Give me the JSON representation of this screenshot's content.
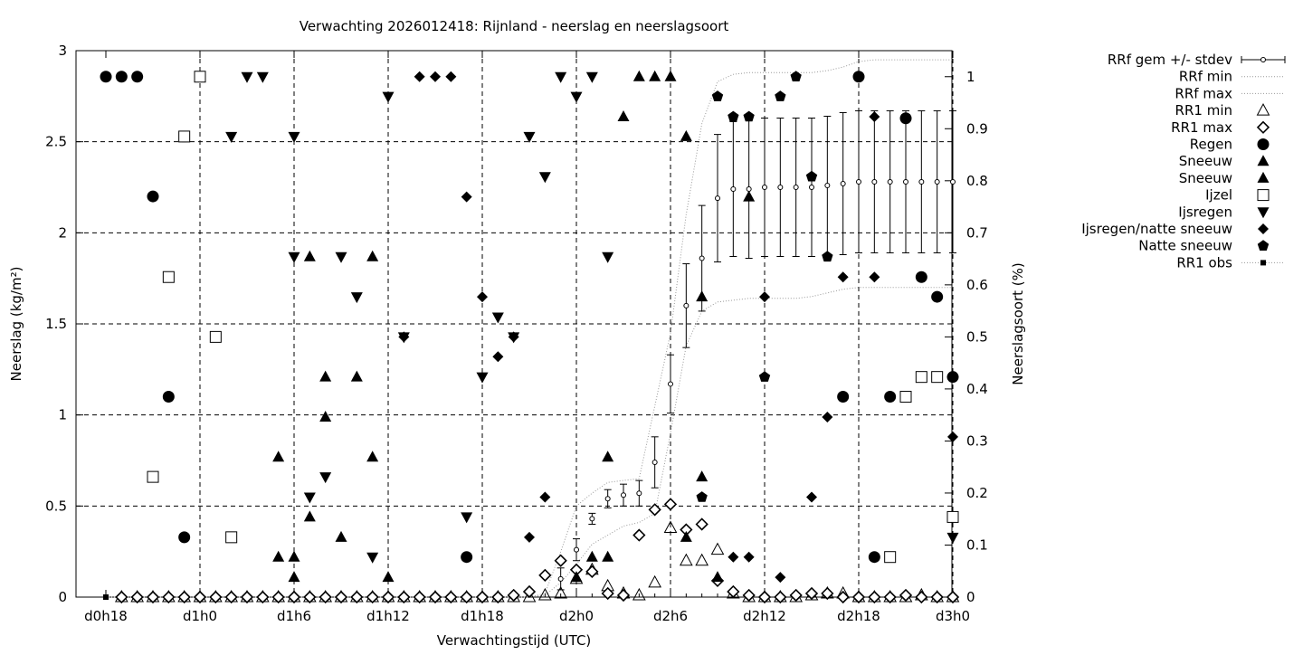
{
  "chart_data": {
    "type": "scatter",
    "title": "Verwachting 2026012418: Rijnland - neerslag en neerslagsoort",
    "xlabel": "Verwachtingstijd (UTC)",
    "ylabel": "Neerslag (kg/m²)",
    "y2label": "Neerslagsoort (%)",
    "x_unit": "hours from d0h18",
    "xlim": [
      0,
      54
    ],
    "ylim": [
      0,
      3
    ],
    "y2lim": [
      0,
      1.05
    ],
    "grid": true,
    "legend_position": "outside-right",
    "x_ticks": [
      {
        "x": 0,
        "label": "d0h18"
      },
      {
        "x": 6,
        "label": "d1h0"
      },
      {
        "x": 12,
        "label": "d1h6"
      },
      {
        "x": 18,
        "label": "d1h12"
      },
      {
        "x": 24,
        "label": "d1h18"
      },
      {
        "x": 30,
        "label": "d2h0"
      },
      {
        "x": 36,
        "label": "d2h6"
      },
      {
        "x": 42,
        "label": "d2h12"
      },
      {
        "x": 48,
        "label": "d2h18"
      },
      {
        "x": 54,
        "label": "d3h0"
      }
    ],
    "y_ticks": [
      {
        "v": 0,
        "label": "0"
      },
      {
        "v": 0.5,
        "label": "0.5"
      },
      {
        "v": 1,
        "label": "1"
      },
      {
        "v": 1.5,
        "label": "1.5"
      },
      {
        "v": 2,
        "label": "2"
      },
      {
        "v": 2.5,
        "label": "2.5"
      },
      {
        "v": 3,
        "label": "3"
      }
    ],
    "y2_ticks": [
      {
        "v": 0,
        "label": "0"
      },
      {
        "v": 0.1,
        "label": "0.1"
      },
      {
        "v": 0.2,
        "label": "0.2"
      },
      {
        "v": 0.3,
        "label": "0.3"
      },
      {
        "v": 0.4,
        "label": "0.4"
      },
      {
        "v": 0.5,
        "label": "0.5"
      },
      {
        "v": 0.6,
        "label": "0.6"
      },
      {
        "v": 0.7,
        "label": "0.7"
      },
      {
        "v": 0.8,
        "label": "0.8"
      },
      {
        "v": 0.9,
        "label": "0.9"
      },
      {
        "v": 1,
        "label": "1"
      }
    ],
    "legend": [
      {
        "label": "RRf gem +/- stdev",
        "symbol": "errorbar"
      },
      {
        "label": "RRf min",
        "symbol": "dotted"
      },
      {
        "label": "RRf max",
        "symbol": "dotted"
      },
      {
        "label": "RR1 min",
        "symbol": "triangle-up-open"
      },
      {
        "label": "RR1 max",
        "symbol": "diamond-open"
      },
      {
        "label": "Regen",
        "symbol": "circle-filled"
      },
      {
        "label": "Sneeuw",
        "symbol": "triangle-up-filled"
      },
      {
        "label": "Sneeuw",
        "symbol": "triangle-up-filled"
      },
      {
        "label": "Ijzel",
        "symbol": "square-open"
      },
      {
        "label": "Ijsregen",
        "symbol": "triangle-down-filled"
      },
      {
        "label": "Ijsregen/natte sneeuw",
        "symbol": "diamond-filled"
      },
      {
        "label": "Natte sneeuw",
        "symbol": "pentagon-filled"
      },
      {
        "label": "RR1 obs",
        "symbol": "square-filled-line"
      }
    ],
    "rrf_mean": [
      {
        "x": 29,
        "y": 0.1,
        "sd": 0.06
      },
      {
        "x": 30,
        "y": 0.26,
        "sd": 0.06
      },
      {
        "x": 31,
        "y": 0.43,
        "sd": 0.03
      },
      {
        "x": 32,
        "y": 0.54,
        "sd": 0.05
      },
      {
        "x": 33,
        "y": 0.56,
        "sd": 0.06
      },
      {
        "x": 34,
        "y": 0.57,
        "sd": 0.07
      },
      {
        "x": 35,
        "y": 0.74,
        "sd": 0.14
      },
      {
        "x": 36,
        "y": 1.17,
        "sd": 0.16
      },
      {
        "x": 37,
        "y": 1.6,
        "sd": 0.23
      },
      {
        "x": 38,
        "y": 1.86,
        "sd": 0.29
      },
      {
        "x": 39,
        "y": 2.19,
        "sd": 0.35
      },
      {
        "x": 40,
        "y": 2.24,
        "sd": 0.37
      },
      {
        "x": 41,
        "y": 2.24,
        "sd": 0.38
      },
      {
        "x": 42,
        "y": 2.25,
        "sd": 0.38
      },
      {
        "x": 43,
        "y": 2.25,
        "sd": 0.38
      },
      {
        "x": 44,
        "y": 2.25,
        "sd": 0.38
      },
      {
        "x": 45,
        "y": 2.25,
        "sd": 0.38
      },
      {
        "x": 46,
        "y": 2.26,
        "sd": 0.38
      },
      {
        "x": 47,
        "y": 2.27,
        "sd": 0.39
      },
      {
        "x": 48,
        "y": 2.28,
        "sd": 0.39
      },
      {
        "x": 49,
        "y": 2.28,
        "sd": 0.39
      },
      {
        "x": 50,
        "y": 2.28,
        "sd": 0.39
      },
      {
        "x": 51,
        "y": 2.28,
        "sd": 0.39
      },
      {
        "x": 52,
        "y": 2.28,
        "sd": 0.39
      },
      {
        "x": 53,
        "y": 2.28,
        "sd": 0.39
      },
      {
        "x": 54,
        "y": 2.28,
        "sd": 0.39
      }
    ],
    "rrf_min": [
      [
        0,
        0
      ],
      [
        27,
        0
      ],
      [
        28,
        0.01
      ],
      [
        29,
        0.08
      ],
      [
        30,
        0.18
      ],
      [
        31,
        0.29
      ],
      [
        32,
        0.34
      ],
      [
        33,
        0.39
      ],
      [
        34,
        0.41
      ],
      [
        35,
        0.46
      ],
      [
        36,
        0.9
      ],
      [
        37,
        1.38
      ],
      [
        38,
        1.57
      ],
      [
        39,
        1.62
      ],
      [
        40,
        1.63
      ],
      [
        41,
        1.64
      ],
      [
        42,
        1.64
      ],
      [
        43,
        1.64
      ],
      [
        44,
        1.64
      ],
      [
        45,
        1.65
      ],
      [
        46,
        1.67
      ],
      [
        47,
        1.69
      ],
      [
        48,
        1.7
      ],
      [
        49,
        1.7
      ],
      [
        50,
        1.7
      ],
      [
        51,
        1.7
      ],
      [
        52,
        1.7
      ],
      [
        53,
        1.7
      ],
      [
        54,
        1.7
      ]
    ],
    "rrf_max": [
      [
        0,
        0
      ],
      [
        27,
        0
      ],
      [
        28,
        0.02
      ],
      [
        29,
        0.25
      ],
      [
        30,
        0.5
      ],
      [
        31,
        0.57
      ],
      [
        32,
        0.63
      ],
      [
        33,
        0.64
      ],
      [
        34,
        0.65
      ],
      [
        35,
        1.05
      ],
      [
        36,
        1.45
      ],
      [
        37,
        2.1
      ],
      [
        38,
        2.6
      ],
      [
        39,
        2.83
      ],
      [
        40,
        2.87
      ],
      [
        41,
        2.88
      ],
      [
        42,
        2.88
      ],
      [
        43,
        2.88
      ],
      [
        44,
        2.88
      ],
      [
        45,
        2.88
      ],
      [
        46,
        2.89
      ],
      [
        47,
        2.91
      ],
      [
        48,
        2.94
      ],
      [
        49,
        2.95
      ],
      [
        50,
        2.95
      ],
      [
        51,
        2.95
      ],
      [
        52,
        2.95
      ],
      [
        53,
        2.95
      ],
      [
        54,
        2.95
      ]
    ],
    "rr1_min": [
      [
        1,
        0
      ],
      [
        2,
        0
      ],
      [
        3,
        0
      ],
      [
        4,
        0
      ],
      [
        5,
        0
      ],
      [
        6,
        0
      ],
      [
        7,
        0
      ],
      [
        8,
        0
      ],
      [
        9,
        0
      ],
      [
        10,
        0
      ],
      [
        11,
        0
      ],
      [
        12,
        0
      ],
      [
        13,
        0
      ],
      [
        14,
        0
      ],
      [
        15,
        0
      ],
      [
        16,
        0
      ],
      [
        17,
        0
      ],
      [
        18,
        0
      ],
      [
        19,
        0
      ],
      [
        20,
        0
      ],
      [
        21,
        0
      ],
      [
        22,
        0
      ],
      [
        23,
        0
      ],
      [
        24,
        0
      ],
      [
        25,
        0
      ],
      [
        26,
        0
      ],
      [
        27,
        0
      ],
      [
        28,
        0.01
      ],
      [
        29,
        0.02
      ],
      [
        30,
        0.1
      ],
      [
        31,
        0.15
      ],
      [
        32,
        0.06
      ],
      [
        33,
        0.02
      ],
      [
        34,
        0.01
      ],
      [
        35,
        0.08
      ],
      [
        36,
        0.38
      ],
      [
        37,
        0.2
      ],
      [
        38,
        0.2
      ],
      [
        39,
        0.26
      ],
      [
        40,
        0.02
      ],
      [
        41,
        0
      ],
      [
        42,
        0
      ],
      [
        43,
        0
      ],
      [
        44,
        0
      ],
      [
        45,
        0.01
      ],
      [
        46,
        0.02
      ],
      [
        47,
        0.02
      ],
      [
        48,
        0
      ],
      [
        49,
        0
      ],
      [
        50,
        0
      ],
      [
        51,
        0
      ],
      [
        52,
        0.01
      ],
      [
        53,
        0
      ],
      [
        54,
        0
      ]
    ],
    "rr1_max": [
      [
        1,
        0
      ],
      [
        2,
        0
      ],
      [
        3,
        0
      ],
      [
        4,
        0
      ],
      [
        5,
        0
      ],
      [
        6,
        0
      ],
      [
        7,
        0
      ],
      [
        8,
        0
      ],
      [
        9,
        0
      ],
      [
        10,
        0
      ],
      [
        11,
        0
      ],
      [
        12,
        0
      ],
      [
        13,
        0
      ],
      [
        14,
        0
      ],
      [
        15,
        0
      ],
      [
        16,
        0
      ],
      [
        17,
        0
      ],
      [
        18,
        0
      ],
      [
        19,
        0
      ],
      [
        20,
        0
      ],
      [
        21,
        0
      ],
      [
        22,
        0
      ],
      [
        23,
        0
      ],
      [
        24,
        0
      ],
      [
        25,
        0
      ],
      [
        26,
        0.01
      ],
      [
        27,
        0.03
      ],
      [
        28,
        0.12
      ],
      [
        29,
        0.2
      ],
      [
        30,
        0.15
      ],
      [
        31,
        0.14
      ],
      [
        32,
        0.02
      ],
      [
        33,
        0.01
      ],
      [
        34,
        0.34
      ],
      [
        35,
        0.48
      ],
      [
        36,
        0.51
      ],
      [
        37,
        0.37
      ],
      [
        38,
        0.4
      ],
      [
        39,
        0.09
      ],
      [
        40,
        0.03
      ],
      [
        41,
        0.01
      ],
      [
        42,
        0
      ],
      [
        43,
        0
      ],
      [
        44,
        0.01
      ],
      [
        45,
        0.02
      ],
      [
        46,
        0.02
      ],
      [
        47,
        0
      ],
      [
        48,
        0
      ],
      [
        49,
        0
      ],
      [
        50,
        0
      ],
      [
        51,
        0.01
      ],
      [
        52,
        0
      ],
      [
        53,
        0
      ],
      [
        54,
        0
      ]
    ],
    "rr1_obs": [
      [
        0,
        0
      ]
    ],
    "precip_type_series": [
      {
        "name": "Regen",
        "marker": "circle-filled",
        "points": [
          [
            0,
            1
          ],
          [
            1,
            1
          ],
          [
            2,
            1
          ],
          [
            3,
            0.77
          ],
          [
            4,
            0.385
          ],
          [
            5,
            0.115
          ],
          [
            48,
            1
          ],
          [
            47,
            0.385
          ],
          [
            49,
            0.077
          ],
          [
            50,
            0.385
          ],
          [
            51,
            0.92
          ],
          [
            52,
            0.615
          ],
          [
            53,
            0.577
          ],
          [
            54,
            0.423
          ],
          [
            23,
            0.077
          ]
        ]
      },
      {
        "name": "Sneeuw",
        "marker": "triangle-up-filled",
        "points": [
          [
            11,
            0.077
          ],
          [
            11,
            0.269
          ],
          [
            12,
            0.077
          ],
          [
            12,
            0.038
          ],
          [
            13,
            0.154
          ],
          [
            13,
            0.654
          ],
          [
            14,
            0.346
          ],
          [
            14,
            0.423
          ],
          [
            15,
            0.115
          ],
          [
            16,
            0.423
          ],
          [
            17,
            0.654
          ],
          [
            17,
            0.269
          ],
          [
            18,
            0.038
          ],
          [
            30,
            0.038
          ],
          [
            31,
            0.077
          ],
          [
            32,
            0.077
          ],
          [
            32,
            0.269
          ],
          [
            33,
            0.923
          ],
          [
            34,
            1
          ],
          [
            35,
            1
          ],
          [
            36,
            1
          ],
          [
            37,
            0.885
          ],
          [
            37,
            0.115
          ],
          [
            38,
            0.577
          ],
          [
            38,
            0.231
          ],
          [
            39,
            0.038
          ],
          [
            41,
            0.769
          ]
        ]
      },
      {
        "name": "Ijzel",
        "marker": "square-open",
        "points": [
          [
            3,
            0.231
          ],
          [
            4,
            0.615
          ],
          [
            5,
            0.885
          ],
          [
            6,
            1
          ],
          [
            7,
            0.5
          ],
          [
            8,
            0.115
          ],
          [
            51,
            0.385
          ],
          [
            52,
            0.423
          ],
          [
            53,
            0.423
          ],
          [
            54,
            0.154
          ],
          [
            50,
            0.077
          ]
        ]
      },
      {
        "name": "Ijsregen",
        "marker": "triangle-down-filled",
        "points": [
          [
            8,
            0.885
          ],
          [
            9,
            1
          ],
          [
            10,
            1
          ],
          [
            12,
            0.885
          ],
          [
            12,
            0.654
          ],
          [
            13,
            0.192
          ],
          [
            14,
            0.231
          ],
          [
            15,
            0.654
          ],
          [
            16,
            0.577
          ],
          [
            17,
            0.077
          ],
          [
            18,
            0.962
          ],
          [
            19,
            0.5
          ],
          [
            23,
            0.154
          ],
          [
            24,
            0.423
          ],
          [
            25,
            0.538
          ],
          [
            26,
            0.5
          ],
          [
            27,
            0.885
          ],
          [
            28,
            0.808
          ],
          [
            29,
            1
          ],
          [
            30,
            0.962
          ],
          [
            31,
            1
          ],
          [
            32,
            0.654
          ],
          [
            54,
            0.115
          ]
        ]
      },
      {
        "name": "Ijsregen/natte sneeuw",
        "marker": "diamond-filled",
        "points": [
          [
            19,
            0.5
          ],
          [
            20,
            1
          ],
          [
            21,
            1
          ],
          [
            22,
            1
          ],
          [
            23,
            0.769
          ],
          [
            24,
            0.577
          ],
          [
            25,
            0.462
          ],
          [
            26,
            0.5
          ],
          [
            27,
            0.115
          ],
          [
            28,
            0.192
          ],
          [
            40,
            0.077
          ],
          [
            41,
            0.077
          ],
          [
            42,
            0.577
          ],
          [
            43,
            0.038
          ],
          [
            45,
            0.192
          ],
          [
            46,
            0.346
          ],
          [
            47,
            0.615
          ],
          [
            49,
            0.615
          ],
          [
            49,
            0.923
          ],
          [
            54,
            0.308
          ]
        ]
      },
      {
        "name": "Natte sneeuw",
        "marker": "pentagon-filled",
        "points": [
          [
            38,
            0.192
          ],
          [
            39,
            0.962
          ],
          [
            40,
            0.923
          ],
          [
            41,
            0.923
          ],
          [
            42,
            0.423
          ],
          [
            43,
            0.962
          ],
          [
            44,
            1
          ],
          [
            45,
            0.808
          ],
          [
            46,
            0.654
          ]
        ]
      }
    ]
  }
}
